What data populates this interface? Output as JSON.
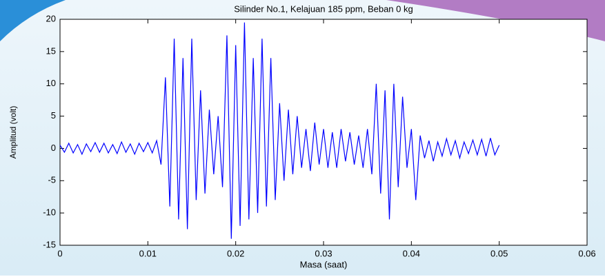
{
  "chart_data": {
    "type": "line",
    "title": "Silinder No.1, Kelajuan 185 ppm, Beban 0 kg",
    "x_label": "Masa (saat)",
    "y_label": "Amplitud (volt)",
    "x": [
      0,
      0.0005,
      0.001,
      0.0015,
      0.002,
      0.0025,
      0.003,
      0.0035,
      0.004,
      0.0045,
      0.005,
      0.0055,
      0.006,
      0.0065,
      0.007,
      0.0075,
      0.008,
      0.0085,
      0.009,
      0.0095,
      0.01,
      0.0105,
      0.011,
      0.0115,
      0.012,
      0.0125,
      0.013,
      0.0135,
      0.014,
      0.0145,
      0.015,
      0.0155,
      0.016,
      0.0165,
      0.017,
      0.0175,
      0.018,
      0.0185,
      0.019,
      0.0195,
      0.02,
      0.0205,
      0.021,
      0.0215,
      0.022,
      0.0225,
      0.023,
      0.0235,
      0.024,
      0.0245,
      0.025,
      0.0255,
      0.026,
      0.0265,
      0.027,
      0.0275,
      0.028,
      0.0285,
      0.029,
      0.0295,
      0.03,
      0.0305,
      0.031,
      0.0315,
      0.032,
      0.0325,
      0.033,
      0.0335,
      0.034,
      0.0345,
      0.035,
      0.0355,
      0.036,
      0.0365,
      0.037,
      0.0375,
      0.038,
      0.0385,
      0.039,
      0.0395,
      0.04,
      0.0405,
      0.041,
      0.0415,
      0.042,
      0.0425,
      0.043,
      0.0435,
      0.044,
      0.0445,
      0.045,
      0.0455,
      0.046,
      0.0465,
      0.047,
      0.0475,
      0.048,
      0.0485,
      0.049,
      0.0495,
      0.05
    ],
    "series": [
      {
        "name": "Amplitud",
        "color": "#0000ff",
        "values": [
          0.5,
          -0.6,
          0.8,
          -0.7,
          0.6,
          -0.9,
          0.7,
          -0.5,
          0.9,
          -0.6,
          0.8,
          -0.7,
          0.6,
          -0.8,
          1.0,
          -0.6,
          0.7,
          -0.9,
          0.8,
          -0.5,
          0.9,
          -0.7,
          1.2,
          -2.5,
          11,
          -9,
          17,
          -11,
          14,
          -12.5,
          17,
          -8,
          9,
          -7,
          6,
          -4,
          5,
          -6,
          17.5,
          -14,
          16,
          -12,
          19.5,
          -11,
          14,
          -10,
          17,
          -9,
          14,
          -8,
          7,
          -5,
          6,
          -4,
          5,
          -3,
          3,
          -3.5,
          4,
          -2.5,
          3,
          -3,
          2.5,
          -3,
          3,
          -2,
          2.5,
          -2.5,
          2,
          -3,
          3,
          -4,
          10,
          -7,
          9,
          -11,
          10,
          -6,
          8,
          -3,
          3,
          -8,
          2,
          -1.5,
          1.2,
          -2,
          1,
          -1.2,
          1.5,
          -1,
          1.2,
          -1.5,
          1,
          -0.8,
          1.3,
          -1,
          1.4,
          -1.2,
          1.6,
          -1,
          0.5
        ]
      }
    ],
    "xlim": [
      0,
      0.06
    ],
    "xticks": [
      0,
      0.01,
      0.02,
      0.03,
      0.04,
      0.05,
      0.06
    ],
    "ylim": [
      -15,
      20
    ],
    "yticks": [
      -15,
      -10,
      -5,
      0,
      5,
      10,
      15,
      20
    ],
    "grid": false
  }
}
